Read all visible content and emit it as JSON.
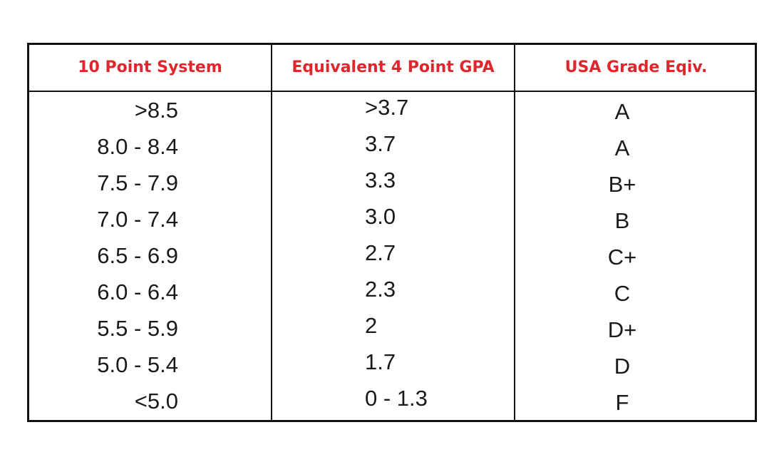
{
  "table": {
    "headers": [
      "10 Point System",
      "Equivalent 4 Point GPA",
      "USA Grade Eqiv."
    ],
    "header_color": "#e0262d",
    "rows": [
      [
        ">8.5",
        ">3.7",
        "A"
      ],
      [
        "8.0 - 8.4",
        "3.7",
        "A"
      ],
      [
        "7.5 - 7.9",
        "3.3",
        "B+"
      ],
      [
        "7.0 - 7.4",
        "3.0",
        "B"
      ],
      [
        "6.5 - 6.9",
        "2.7",
        "C+"
      ],
      [
        "6.0 - 6.4",
        "2.3",
        "C"
      ],
      [
        "5.5 - 5.9",
        "2",
        "D+"
      ],
      [
        "5.0 - 5.4",
        "1.7",
        "D"
      ],
      [
        "<5.0",
        "0 - 1.3",
        "F"
      ]
    ]
  }
}
